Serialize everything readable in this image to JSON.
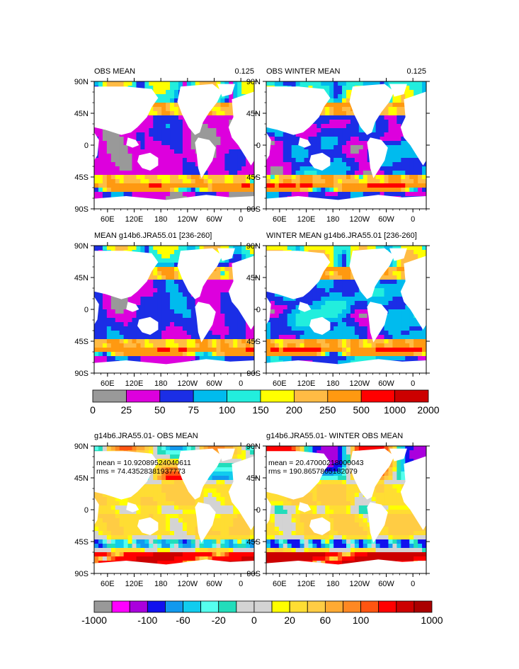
{
  "chart_data": {
    "type": "heatmap",
    "lat_ticks": [
      "90N",
      "45N",
      "0",
      "45S",
      "90S"
    ],
    "lon_ticks": [
      "60E",
      "120E",
      "180",
      "120W",
      "60W",
      "0"
    ],
    "panels": [
      {
        "title_left": "OBS MEAN",
        "title_right": "0.125",
        "stats": [],
        "scale": "abs",
        "variant": 0
      },
      {
        "title_left": "OBS WINTER MEAN",
        "title_right": "0.125",
        "stats": [],
        "scale": "abs",
        "variant": 1
      },
      {
        "title_left": "MEAN g14b6.JRA55.01 [236-260]",
        "title_right": "",
        "stats": [],
        "scale": "abs",
        "variant": 2
      },
      {
        "title_left": "WINTER MEAN g14b6.JRA55.01 [236-260]",
        "title_right": "",
        "stats": [],
        "scale": "abs",
        "variant": 3
      },
      {
        "title_left": "g14b6.JRA55.01- OBS MEAN",
        "title_right": "",
        "stats": [
          "mean = 10.92089524040611",
          "rms = 74.43528381937773"
        ],
        "scale": "diff",
        "variant": 4
      },
      {
        "title_left": "g14b6.JRA55.01- WINTER OBS MEAN",
        "title_right": "",
        "stats": [
          "mean = 20.47000218000043",
          "rms = 190.8657805182079"
        ],
        "scale": "diff",
        "variant": 5
      }
    ],
    "colorbar_abs": {
      "colors": [
        "#999999",
        "#dd00dd",
        "#1b2ee6",
        "#00bbee",
        "#22eedd",
        "#ffff00",
        "#ffbb44",
        "#ff9911",
        "#ff0000",
        "#cc0000"
      ],
      "labels": [
        "0",
        "25",
        "50",
        "75",
        "100",
        "150",
        "200",
        "250",
        "500",
        "1000",
        "2000"
      ]
    },
    "colorbar_diff": {
      "colors": [
        "#999999",
        "#ff00ff",
        "#aa00dd",
        "#1111ee",
        "#1199ee",
        "#11ccee",
        "#55ffee",
        "#22ddbb",
        "#d3d3d3",
        "#d3d3d3",
        "#ffff00",
        "#ffdd33",
        "#ffcc44",
        "#ffaa33",
        "#ff8822",
        "#ff5511",
        "#ff0000",
        "#cc0000",
        "#aa0000"
      ],
      "labels": [
        "-1000",
        "-100",
        "-60",
        "-20",
        "0",
        "20",
        "60",
        "100",
        "1000"
      ]
    }
  }
}
